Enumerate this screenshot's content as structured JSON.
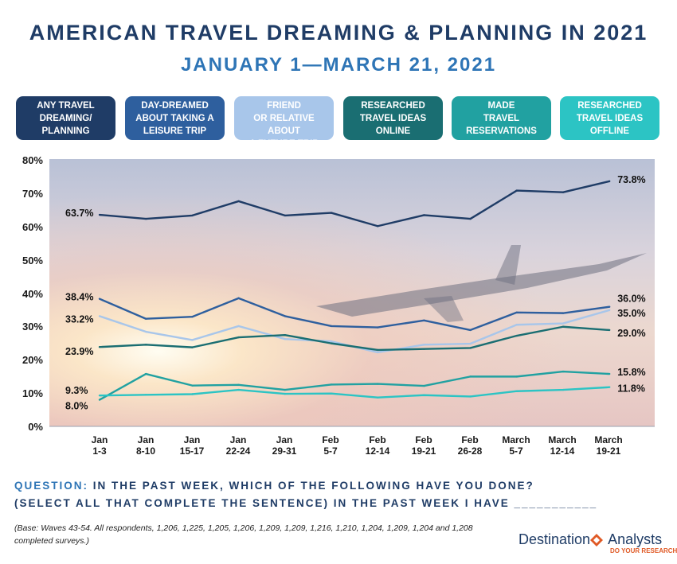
{
  "title": "AMERICAN TRAVEL DREAMING & PLANNING IN 2021",
  "subtitle": "JANUARY 1—MARCH 21, 2021",
  "question_label": "QUESTION:",
  "question_rest": "IN THE PAST WEEK, WHICH OF THE FOLLOWING HAVE YOU DONE?",
  "question_line2": "(SELECT ALL THAT COMPLETE THE SENTENCE) IN THE PAST WEEK I HAVE ___________",
  "base_note": "(Base: Waves 43-54.  All respondents, 1,206, 1,225, 1,205, 1,206, 1,209, 1,209, 1,216, 1,210, 1,204, 1,209, 1,204 and 1,208 completed surveys.)",
  "brand": {
    "left": "Destination",
    "right": "Analysts",
    "tagline": "DO YOUR RESEARCH"
  },
  "chart_data": {
    "type": "line",
    "categories": [
      {
        "top": "Jan",
        "bottom": "1-3"
      },
      {
        "top": "Jan",
        "bottom": "8-10"
      },
      {
        "top": "Jan",
        "bottom": "15-17"
      },
      {
        "top": "Jan",
        "bottom": "22-24"
      },
      {
        "top": "Jan",
        "bottom": "29-31"
      },
      {
        "top": "Feb",
        "bottom": "5-7"
      },
      {
        "top": "Feb",
        "bottom": "12-14"
      },
      {
        "top": "Feb",
        "bottom": "19-21"
      },
      {
        "top": "Feb",
        "bottom": "26-28"
      },
      {
        "top": "March",
        "bottom": "5-7"
      },
      {
        "top": "March",
        "bottom": "12-14"
      },
      {
        "top": "March",
        "bottom": "19-21"
      }
    ],
    "ylim": [
      0,
      80
    ],
    "yticks": [
      "0%",
      "10%",
      "20%",
      "30%",
      "40%",
      "50%",
      "60%",
      "70%",
      "80%"
    ],
    "series": [
      {
        "name": "ANY TRAVEL DREAMING/ PLANNING",
        "color": "#1f3c66",
        "values": [
          63.7,
          62.5,
          63.5,
          67.8,
          63.5,
          64.3,
          60.3,
          63.6,
          62.5,
          71.0,
          70.5,
          73.8
        ],
        "start_label": "63.7%",
        "end_label": "73.8%"
      },
      {
        "name": "DAY-DREAMED ABOUT TAKING A LEISURE TRIP",
        "color": "#2e5f9e",
        "values": [
          38.4,
          32.4,
          33.0,
          38.6,
          33.2,
          30.2,
          29.8,
          31.9,
          29.0,
          34.3,
          34.1,
          36.0
        ],
        "start_label": "38.4%",
        "end_label": "36.0%"
      },
      {
        "name": "TALKED TO A FRIEND OR RELATIVE ABOUT A FUTURE TRIP",
        "color": "#a8c6ea",
        "values": [
          33.2,
          28.5,
          26.0,
          30.2,
          26.3,
          25.6,
          22.3,
          24.6,
          24.9,
          30.6,
          31.0,
          35.0
        ],
        "start_label": "33.2%",
        "end_label": "35.0%"
      },
      {
        "name": "RESEARCHED TRAVEL IDEAS ONLINE",
        "color": "#1a6e72",
        "values": [
          23.9,
          24.6,
          23.8,
          26.8,
          27.5,
          25.0,
          23.0,
          23.3,
          23.6,
          27.3,
          30.0,
          29.0
        ],
        "start_label": "23.9%",
        "end_label": "29.0%"
      },
      {
        "name": "MADE TRAVEL RESERVATIONS",
        "color": "#21a1a1",
        "values": [
          8.0,
          15.8,
          12.3,
          12.5,
          11.0,
          12.6,
          12.8,
          12.2,
          15.0,
          15.0,
          16.5,
          15.8
        ],
        "start_label": "8.0%",
        "end_label": "15.8%"
      },
      {
        "name": "RESEARCHED TRAVEL IDEAS OFFLINE",
        "color": "#2cc4c4",
        "values": [
          9.3,
          9.5,
          9.7,
          11.0,
          9.8,
          9.9,
          8.7,
          9.4,
          9.0,
          10.6,
          11.0,
          11.8
        ],
        "start_label": "9.3%",
        "end_label": "11.8%"
      }
    ]
  },
  "legend": [
    {
      "line1": "ANY TRAVEL",
      "line2": "DREAMING/",
      "line3": "PLANNING",
      "color": "#1f3c66"
    },
    {
      "line1": "DAY-DREAMED",
      "line2": "ABOUT TAKING A",
      "line3": "LEISURE TRIP",
      "color": "#2e5f9e"
    },
    {
      "line1": "TALKED TO A FRIEND",
      "line2": "OR RELATIVE ABOUT",
      "line3": "A FUTURE TRIP",
      "color": "#a8c6ea"
    },
    {
      "line1": "RESEARCHED",
      "line2": "TRAVEL IDEAS",
      "line3": "ONLINE",
      "color": "#1a6e72"
    },
    {
      "line1": "MADE",
      "line2": "TRAVEL",
      "line3": "RESERVATIONS",
      "color": "#21a1a1"
    },
    {
      "line1": "RESEARCHED",
      "line2": "TRAVEL IDEAS",
      "line3": "OFFLINE",
      "color": "#2cc4c4"
    }
  ]
}
